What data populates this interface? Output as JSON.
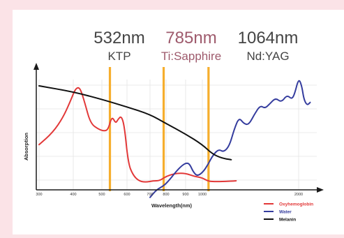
{
  "colors": {
    "background": "#fbe3e7",
    "card": "#ffffff",
    "laser_line": "#f6ae2d",
    "oxyhemoglobin": "#e23838",
    "water": "#343c9e",
    "melanin": "#111111",
    "header_dark": "#444444",
    "header_accent": "#9e5a6c",
    "grid": "#e4e4e4",
    "axis": "#1a1a1a"
  },
  "chart_data": {
    "type": "line",
    "title": "",
    "xlabel": "Wavelength(nm)",
    "ylabel": "Absorption",
    "x_ticks": [
      "300",
      "400",
      "500",
      "600",
      "700",
      "800",
      "900",
      "1000",
      "2000"
    ],
    "grid": true,
    "legend_position": "bottom-right",
    "lasers": [
      {
        "wavelength": "532nm",
        "name": "KTP",
        "x": 532
      },
      {
        "wavelength": "785nm",
        "name": "Ti:Sapphire",
        "x": 785
      },
      {
        "wavelength": "1064nm",
        "name": "Nd:YAG",
        "x": 1064
      }
    ],
    "series": [
      {
        "name": "Oxyhemoglobin",
        "color": "#e23838",
        "points": [
          [
            300,
            0.3
          ],
          [
            340,
            0.38
          ],
          [
            370,
            0.48
          ],
          [
            390,
            0.58
          ],
          [
            405,
            0.66
          ],
          [
            415,
            0.68
          ],
          [
            425,
            0.67
          ],
          [
            440,
            0.58
          ],
          [
            460,
            0.44
          ],
          [
            490,
            0.4
          ],
          [
            510,
            0.39
          ],
          [
            525,
            0.4
          ],
          [
            540,
            0.49
          ],
          [
            555,
            0.44
          ],
          [
            565,
            0.47
          ],
          [
            578,
            0.49
          ],
          [
            590,
            0.42
          ],
          [
            605,
            0.18
          ],
          [
            625,
            0.1
          ],
          [
            650,
            0.06
          ],
          [
            680,
            0.05
          ],
          [
            720,
            0.06
          ],
          [
            760,
            0.06
          ],
          [
            800,
            0.09
          ],
          [
            850,
            0.11
          ],
          [
            900,
            0.11
          ],
          [
            950,
            0.09
          ],
          [
            1000,
            0.08
          ],
          [
            1050,
            0.06
          ],
          [
            1100,
            0.055
          ],
          [
            1200,
            0.055
          ],
          [
            1350,
            0.06
          ]
        ]
      },
      {
        "name": "Water",
        "color": "#343c9e",
        "points": [
          [
            700,
            -0.05
          ],
          [
            740,
            0.0
          ],
          [
            790,
            0.03
          ],
          [
            820,
            0.07
          ],
          [
            850,
            0.12
          ],
          [
            880,
            0.16
          ],
          [
            905,
            0.18
          ],
          [
            925,
            0.17
          ],
          [
            945,
            0.12
          ],
          [
            970,
            0.09
          ],
          [
            1010,
            0.12
          ],
          [
            1060,
            0.17
          ],
          [
            1110,
            0.23
          ],
          [
            1170,
            0.27
          ],
          [
            1220,
            0.25
          ],
          [
            1280,
            0.29
          ],
          [
            1330,
            0.4
          ],
          [
            1380,
            0.48
          ],
          [
            1430,
            0.44
          ],
          [
            1480,
            0.43
          ],
          [
            1540,
            0.5
          ],
          [
            1600,
            0.56
          ],
          [
            1650,
            0.54
          ],
          [
            1700,
            0.57
          ],
          [
            1760,
            0.61
          ],
          [
            1820,
            0.58
          ],
          [
            1880,
            0.63
          ],
          [
            1930,
            0.6
          ],
          [
            1960,
            0.64
          ],
          [
            2000,
            0.74
          ],
          [
            2030,
            0.69
          ],
          [
            2050,
            0.6
          ],
          [
            2080,
            0.56
          ],
          [
            2110,
            0.58
          ]
        ]
      },
      {
        "name": "Melanin",
        "color": "#111111",
        "points": [
          [
            300,
            0.69
          ],
          [
            400,
            0.65
          ],
          [
            500,
            0.6
          ],
          [
            600,
            0.55
          ],
          [
            700,
            0.5
          ],
          [
            800,
            0.44
          ],
          [
            900,
            0.37
          ],
          [
            1000,
            0.3
          ],
          [
            1100,
            0.24
          ],
          [
            1200,
            0.21
          ],
          [
            1300,
            0.2
          ]
        ]
      }
    ]
  }
}
